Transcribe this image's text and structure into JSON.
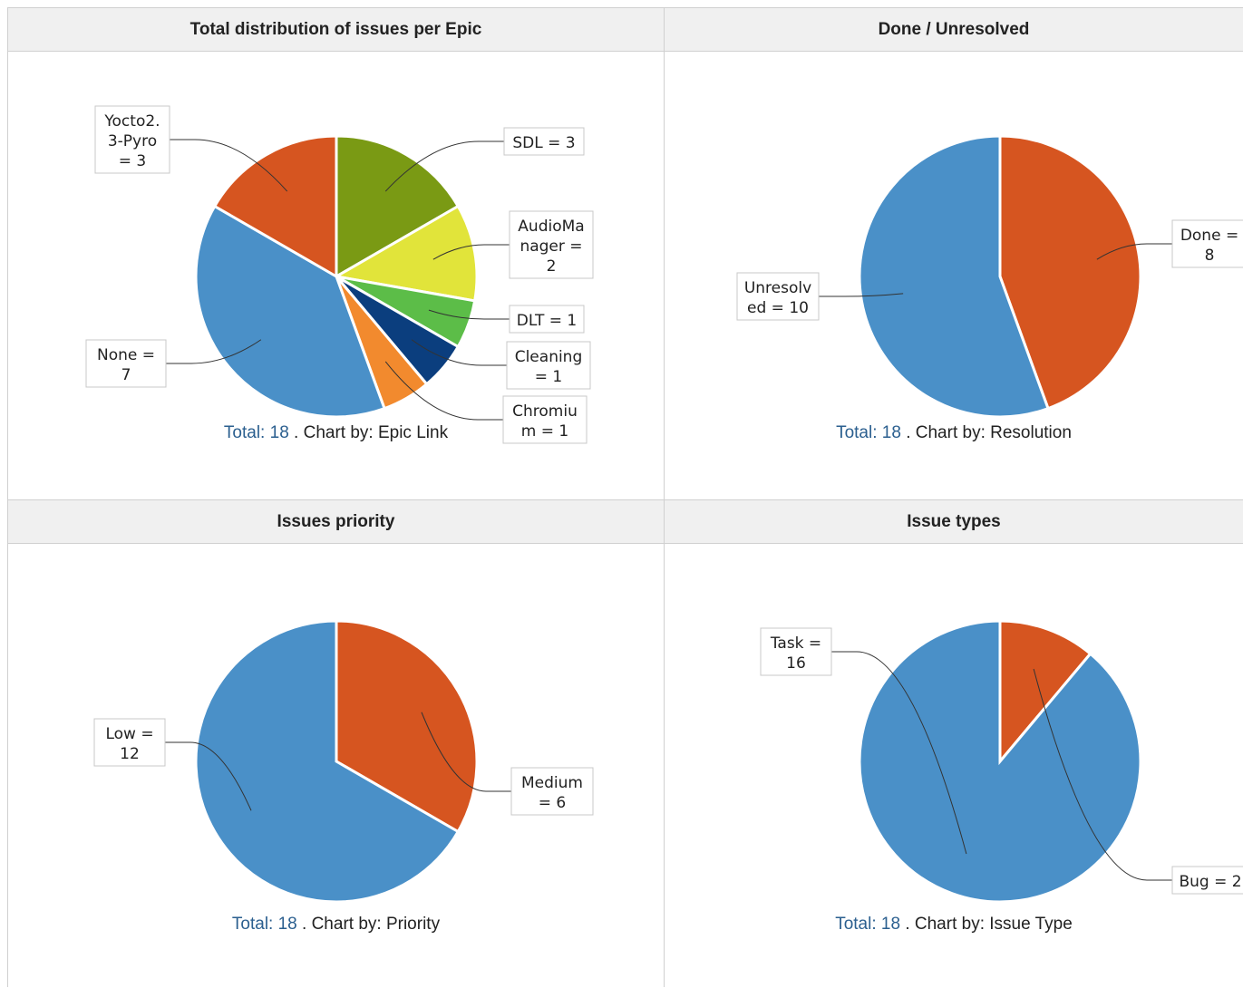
{
  "panels": [
    {
      "title": "Total distribution of issues per Epic",
      "footer": {
        "total_label": "Total:",
        "total_value": "18",
        "chart_by": ". Chart by: Epic Link"
      },
      "chart_data": {
        "type": "pie",
        "title": "Total distribution of issues per Epic",
        "total": 18,
        "slices": [
          {
            "name": "SDL",
            "value": 3,
            "color": "#7a9a14",
            "label_lines": [
              "SDL = 3"
            ]
          },
          {
            "name": "AudioManager",
            "value": 2,
            "color": "#e1e43a",
            "label_lines": [
              "AudioMa",
              "nager =",
              "2"
            ]
          },
          {
            "name": "DLT",
            "value": 1,
            "color": "#5cbd48",
            "label_lines": [
              "DLT = 1"
            ]
          },
          {
            "name": "Cleaning",
            "value": 1,
            "color": "#0b3e7e",
            "label_lines": [
              "Cleaning",
              "= 1"
            ]
          },
          {
            "name": "Chromium",
            "value": 1,
            "color": "#f28a2e",
            "label_lines": [
              "Chromiu",
              "m = 1"
            ]
          },
          {
            "name": "None",
            "value": 7,
            "color": "#4a90c8",
            "label_lines": [
              "None =",
              "7"
            ]
          },
          {
            "name": "Yocto2.3-Pyro",
            "value": 3,
            "color": "#d65520",
            "label_lines": [
              "Yocto2.",
              "3-Pyro",
              "= 3"
            ]
          }
        ]
      }
    },
    {
      "title": "Done / Unresolved",
      "footer": {
        "total_label": "Total:",
        "total_value": "18",
        "chart_by": ". Chart by: Resolution"
      },
      "chart_data": {
        "type": "pie",
        "title": "Done / Unresolved",
        "total": 18,
        "slices": [
          {
            "name": "Done",
            "value": 8,
            "color": "#d65520",
            "label_lines": [
              "Done =",
              "8"
            ]
          },
          {
            "name": "Unresolved",
            "value": 10,
            "color": "#4a90c8",
            "label_lines": [
              "Unresolv",
              "ed = 10"
            ]
          }
        ]
      }
    },
    {
      "title": "Issues priority",
      "footer": {
        "total_label": "Total:",
        "total_value": "18",
        "chart_by": ". Chart by: Priority"
      },
      "chart_data": {
        "type": "pie",
        "title": "Issues priority",
        "total": 18,
        "slices": [
          {
            "name": "Medium",
            "value": 6,
            "color": "#d65520",
            "label_lines": [
              "Medium",
              "= 6"
            ]
          },
          {
            "name": "Low",
            "value": 12,
            "color": "#4a90c8",
            "label_lines": [
              "Low =",
              "12"
            ]
          }
        ]
      }
    },
    {
      "title": "Issue types",
      "footer": {
        "total_label": "Total:",
        "total_value": "18",
        "chart_by": ". Chart by: Issue Type"
      },
      "chart_data": {
        "type": "pie",
        "title": "Issue types",
        "total": 18,
        "slices": [
          {
            "name": "Bug",
            "value": 2,
            "color": "#d65520",
            "label_lines": [
              "Bug = 2"
            ]
          },
          {
            "name": "Task",
            "value": 16,
            "color": "#4a90c8",
            "label_lines": [
              "Task =",
              "16"
            ]
          }
        ]
      }
    }
  ]
}
